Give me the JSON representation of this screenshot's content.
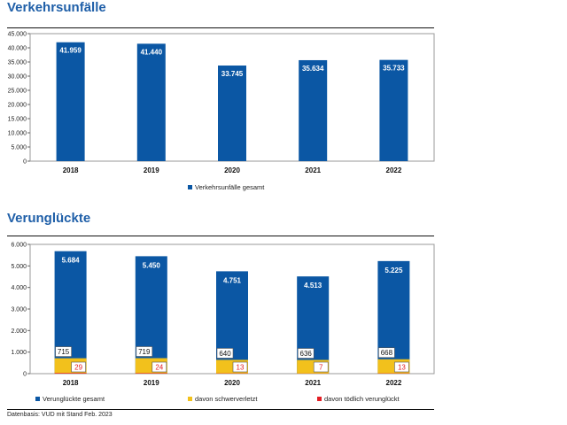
{
  "colors": {
    "title": "#1f5fa8",
    "bar_blue": "#0b57a4",
    "bar_yellow": "#f2c11c",
    "bar_red": "#e31e24"
  },
  "chart1_title": "Verkehrsunfälle",
  "chart2_title": "Verunglückte",
  "source": "Datenbasis: VUD mit Stand Feb. 2023",
  "chart_data": [
    {
      "type": "bar",
      "title": "Verkehrsunfälle",
      "categories": [
        "2018",
        "2019",
        "2020",
        "2021",
        "2022"
      ],
      "series": [
        {
          "name": "Verkehrsunfälle gesamt",
          "values": [
            41959,
            41440,
            33745,
            35634,
            35733
          ],
          "labels": [
            "41.959",
            "41.440",
            "33.745",
            "35.634",
            "35.733"
          ],
          "color": "#0b57a4"
        }
      ],
      "ylim": [
        0,
        45000
      ],
      "yticks": [
        "0",
        "5.000",
        "10.000",
        "15.000",
        "20.000",
        "25.000",
        "30.000",
        "35.000",
        "40.000",
        "45.000"
      ],
      "grid": false,
      "legend": "bottom-center"
    },
    {
      "type": "bar",
      "title": "Verunglückte",
      "categories": [
        "2018",
        "2019",
        "2020",
        "2021",
        "2022"
      ],
      "series": [
        {
          "name": "Verunglückte gesamt",
          "values": [
            5684,
            5450,
            4751,
            4513,
            5225
          ],
          "labels": [
            "5.684",
            "5.450",
            "4.751",
            "4.513",
            "5.225"
          ],
          "color": "#0b57a4"
        },
        {
          "name": "davon schwerverletzt",
          "values": [
            715,
            719,
            640,
            636,
            668
          ],
          "labels": [
            "715",
            "719",
            "640",
            "636",
            "668"
          ],
          "color": "#f2c11c"
        },
        {
          "name": "davon tödlich verunglückt",
          "values": [
            29,
            24,
            13,
            7,
            13
          ],
          "labels": [
            "29",
            "24",
            "13",
            "7",
            "13"
          ],
          "color": "#e31e24"
        }
      ],
      "ylim": [
        0,
        6000
      ],
      "yticks": [
        "0",
        "1.000",
        "2.000",
        "3.000",
        "4.000",
        "5.000",
        "6.000"
      ],
      "grid": false,
      "legend": "bottom"
    }
  ]
}
